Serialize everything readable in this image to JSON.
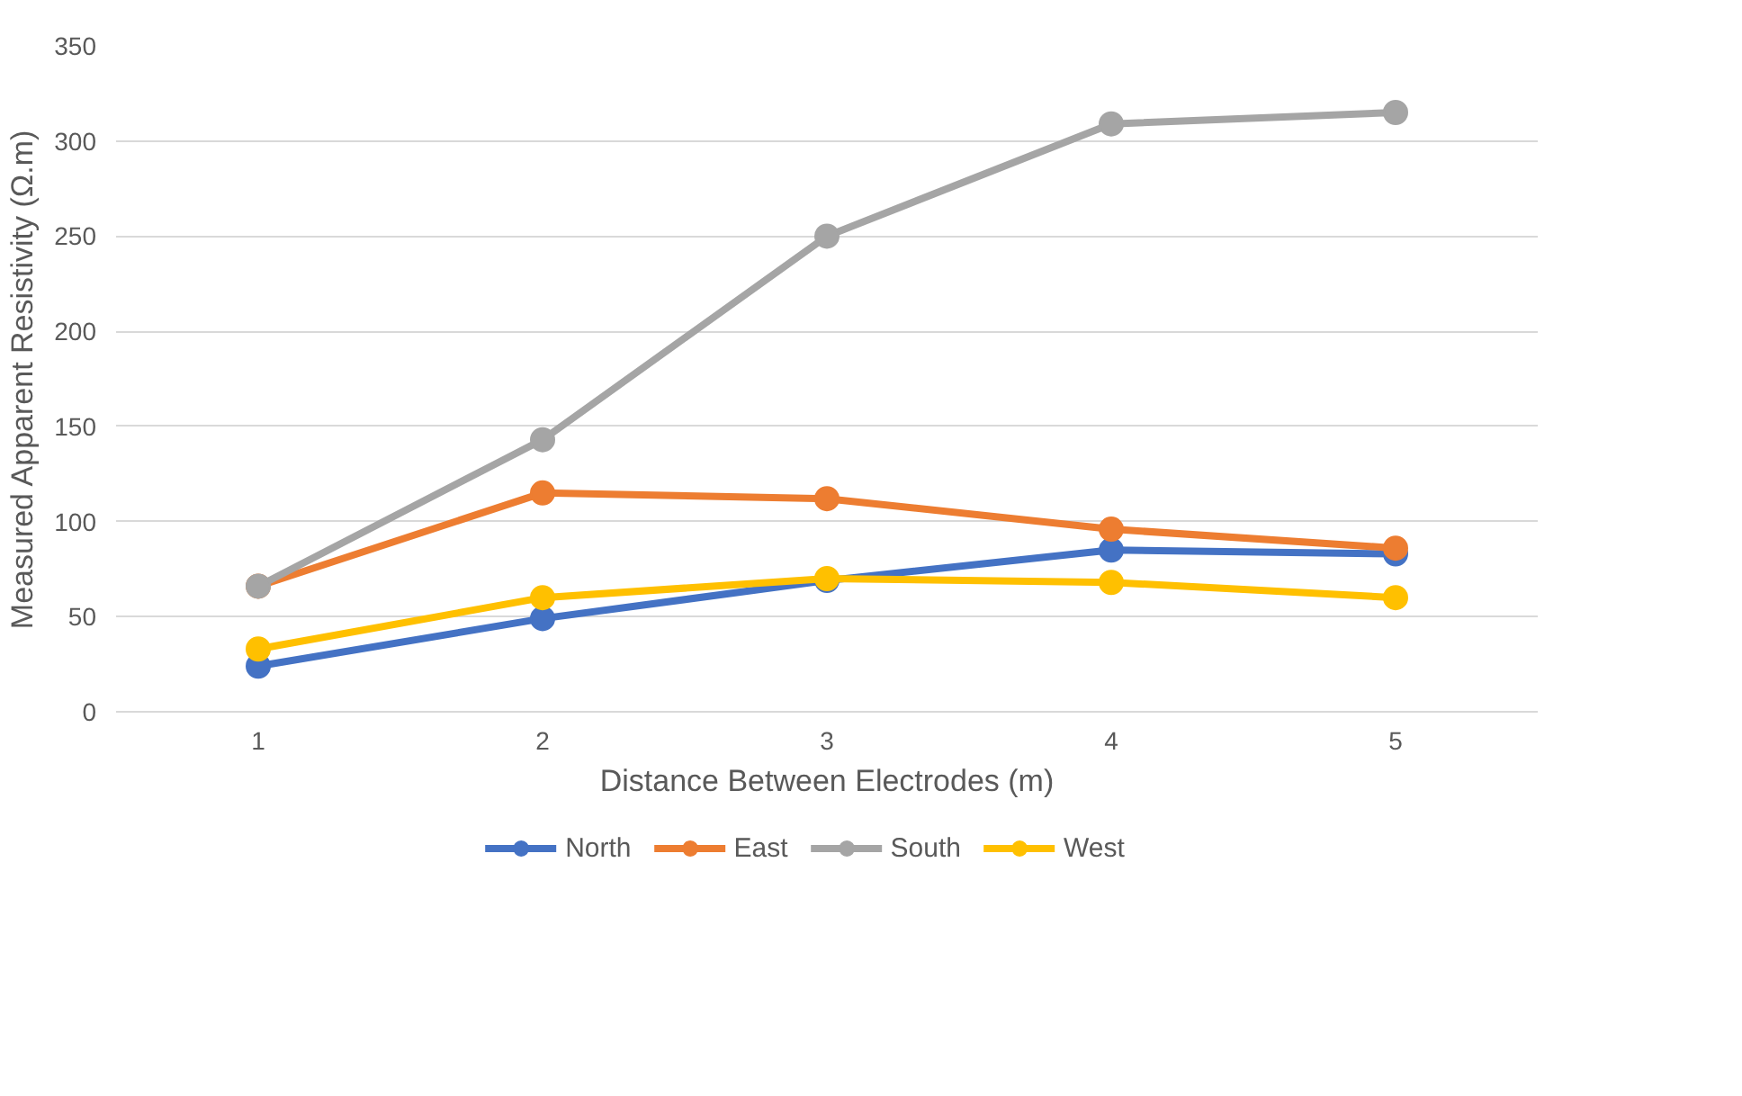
{
  "chart_data": {
    "type": "line",
    "xlabel": "Distance Between Electrodes (m)",
    "ylabel": "Measured Apparent Resistivity (Ω.m)",
    "categories": [
      "1",
      "2",
      "3",
      "4",
      "5"
    ],
    "series": [
      {
        "name": "North",
        "color": "#4472c4",
        "values": [
          24,
          49,
          69,
          85,
          83
        ]
      },
      {
        "name": "East",
        "color": "#ed7d31",
        "values": [
          66,
          115,
          112,
          96,
          86
        ]
      },
      {
        "name": "South",
        "color": "#a5a5a5",
        "values": [
          66,
          143,
          250,
          309,
          315
        ]
      },
      {
        "name": "West",
        "color": "#ffc000",
        "values": [
          33,
          60,
          70,
          68,
          60
        ]
      }
    ],
    "ylim": [
      0,
      350
    ],
    "yticks": [
      0,
      50,
      100,
      150,
      200,
      250,
      300,
      350
    ],
    "grid": "y",
    "legend": "bottom",
    "marker": "circle",
    "line_style": "solid"
  }
}
